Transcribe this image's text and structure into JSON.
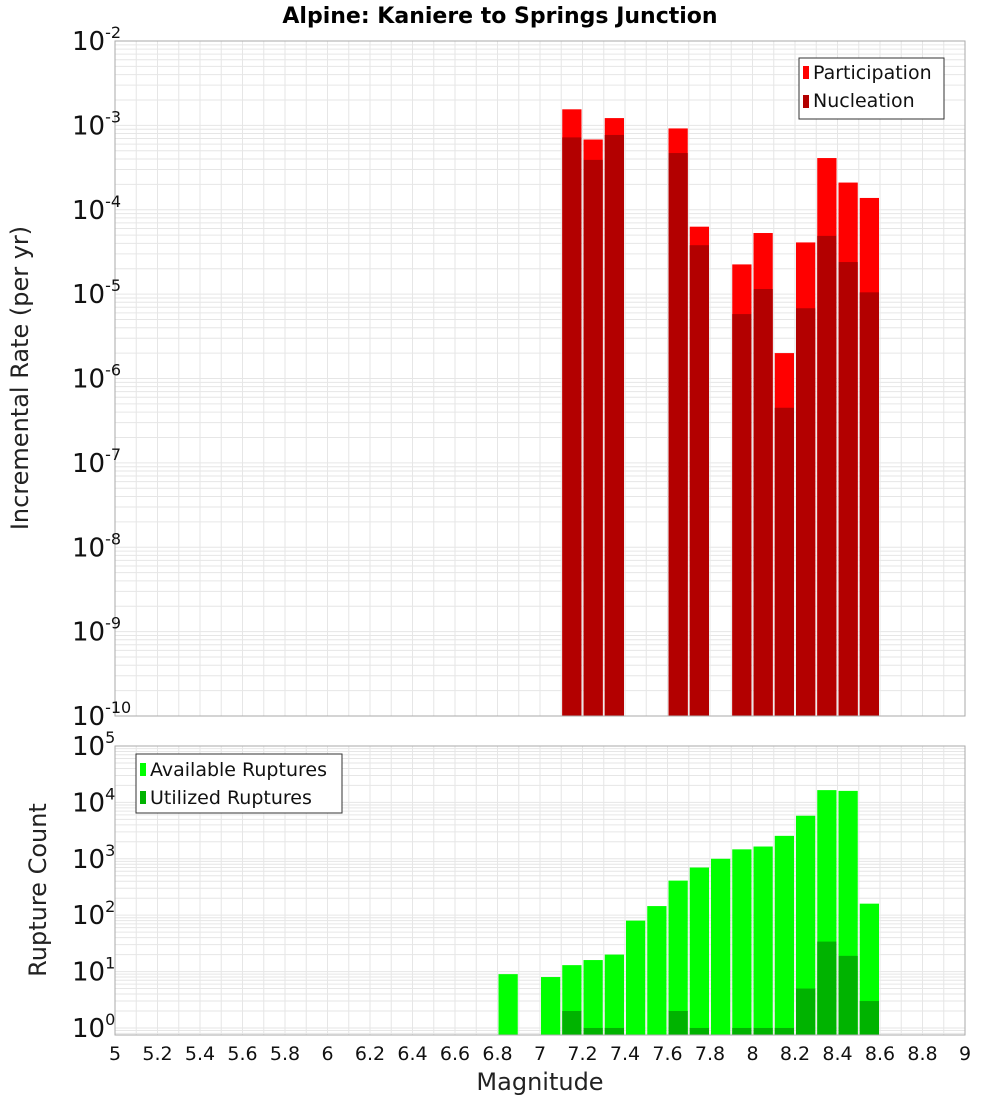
{
  "chart_data": [
    {
      "type": "bar",
      "title": "Alpine: Kaniere to Springs Junction",
      "xlabel": "Magnitude",
      "ylabel": "Incremental Rate (per yr)",
      "xlim": [
        5,
        9
      ],
      "ylim": [
        1e-10,
        0.01
      ],
      "yscale": "log",
      "grid": true,
      "legend_position": "top-right",
      "bin_width": 0.1,
      "x": [
        7.15,
        7.25,
        7.35,
        7.65,
        7.75,
        7.95,
        8.05,
        8.15,
        8.25,
        8.35,
        8.45,
        8.55
      ],
      "series": [
        {
          "name": "Participation",
          "color": "#ff0000",
          "values": [
            0.00155,
            0.00068,
            0.00122,
            0.00092,
            6.3e-05,
            2.25e-05,
            5.3e-05,
            2e-06,
            4.1e-05,
            0.00041,
            0.00021,
            0.000138
          ]
        },
        {
          "name": "Nucleation",
          "color": "#b30000",
          "values": [
            0.00072,
            0.00039,
            0.00077,
            0.00047,
            3.8e-05,
            5.8e-06,
            1.15e-05,
            4.5e-07,
            6.8e-06,
            4.9e-05,
            2.4e-05,
            1.05e-05
          ]
        }
      ]
    },
    {
      "type": "bar",
      "xlabel": "Magnitude",
      "ylabel": "Rupture Count",
      "xlim": [
        5,
        9
      ],
      "ylim": [
        0.75,
        100000
      ],
      "yscale": "log",
      "grid": true,
      "legend_position": "top-left",
      "bin_width": 0.1,
      "x": [
        6.85,
        7.05,
        7.15,
        7.25,
        7.35,
        7.45,
        7.55,
        7.65,
        7.75,
        7.85,
        7.95,
        8.05,
        8.15,
        8.25,
        8.35,
        8.45,
        8.55
      ],
      "series": [
        {
          "name": "Available Ruptures",
          "color": "#00ff00",
          "values": [
            9,
            8,
            13,
            16,
            20,
            80,
            145,
            410,
            700,
            1000,
            1470,
            1650,
            2550,
            5800,
            16500,
            16000,
            160
          ]
        },
        {
          "name": "Utilized Ruptures",
          "color": "#00b300",
          "values": [
            0,
            0,
            2,
            1,
            1,
            0,
            0,
            2,
            1,
            0,
            1,
            1,
            1,
            5,
            34,
            19,
            3
          ]
        }
      ]
    }
  ],
  "x_ticks": [
    "5",
    "5.2",
    "5.4",
    "5.6",
    "5.8",
    "6",
    "6.2",
    "6.4",
    "6.6",
    "6.8",
    "7",
    "7.2",
    "7.4",
    "7.6",
    "7.8",
    "8",
    "8.2",
    "8.4",
    "8.6",
    "8.8",
    "9"
  ],
  "colors": {
    "grid": "#e6e6e6",
    "plot_border": "#aaaaaa",
    "bar_separator": "#ffffff"
  }
}
